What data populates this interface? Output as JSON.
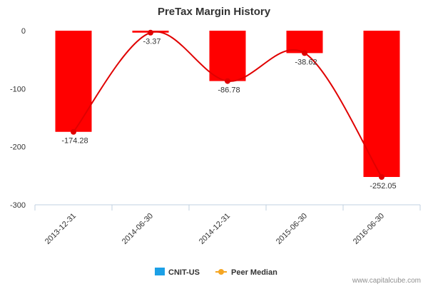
{
  "chart_data": {
    "type": "bar",
    "title": "PreTax Margin History",
    "categories": [
      "2013-12-31",
      "2014-06-30",
      "2014-12-31",
      "2015-06-30",
      "2016-06-30"
    ],
    "series": [
      {
        "name": "CNIT-US",
        "type": "bar",
        "values": [
          -174.28,
          -3.37,
          -86.78,
          -38.62,
          -252.05
        ],
        "color": "#ff0000"
      },
      {
        "name": "Peer Median",
        "type": "line",
        "values": [
          -174.28,
          -3.37,
          -86.78,
          -38.62,
          -252.05
        ],
        "color": "#e00000"
      }
    ],
    "data_labels": [
      "-174.28",
      "-3.37",
      "-86.78",
      "-38.62",
      "-252.05"
    ],
    "y_ticks": [
      0,
      -100,
      -200,
      -300
    ],
    "ylim": [
      -300,
      0
    ],
    "grid": false,
    "legend": {
      "placement": "bottom-center",
      "items": [
        {
          "name": "CNIT-US",
          "color": "#1ca0e6",
          "marker": "square"
        },
        {
          "name": "Peer Median",
          "color": "#f5a623",
          "marker": "line-dot"
        }
      ]
    }
  },
  "credit": "www.capitalcube.com"
}
